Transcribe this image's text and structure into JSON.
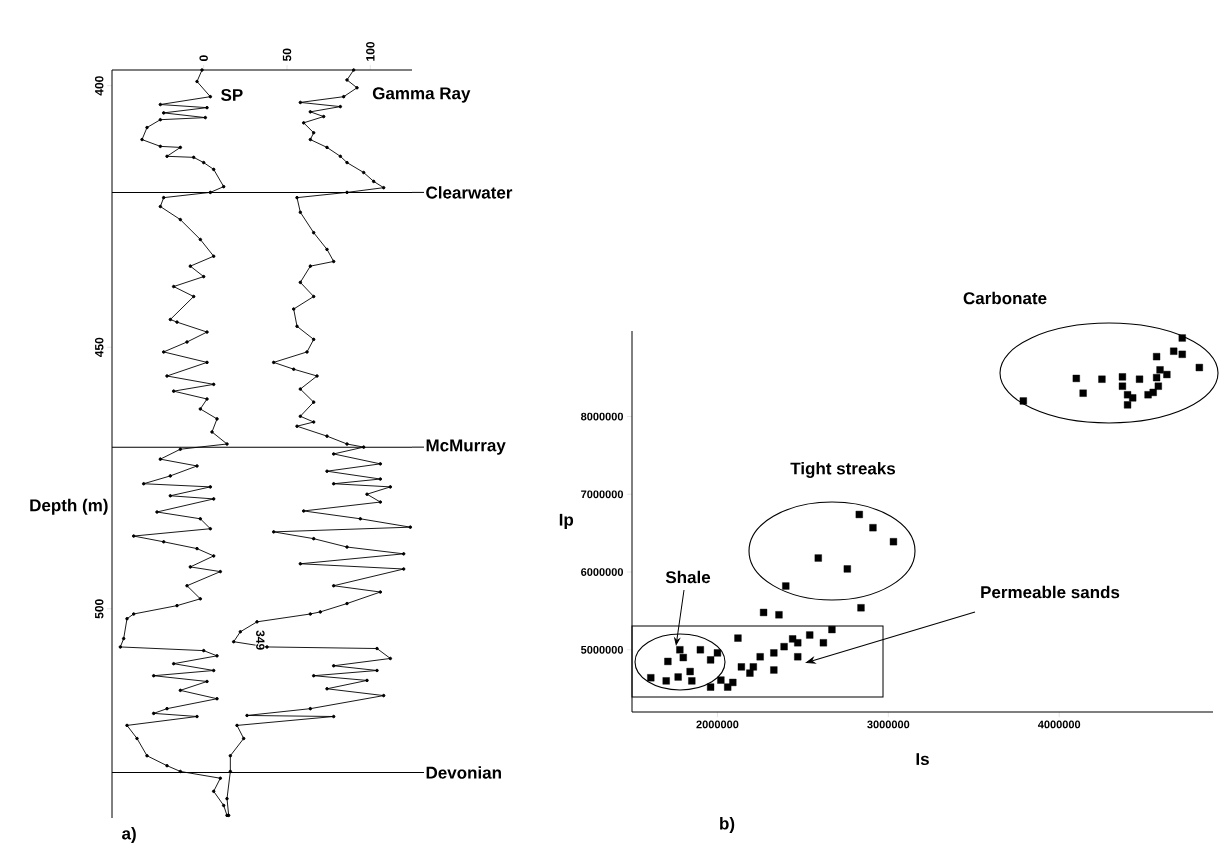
{
  "chart_data": [
    {
      "type": "line",
      "ylabel": "Depth (m)",
      "xlim": [
        -55,
        125
      ],
      "xticks": [
        0,
        50,
        100
      ],
      "ylim": [
        540,
        397
      ],
      "yticks": [
        400,
        450,
        500
      ],
      "marker": "circle",
      "line_style": "solid",
      "ref_lines": [
        {
          "axis": "y",
          "value": 420.4,
          "label": "Clearwater"
        },
        {
          "axis": "y",
          "value": 469.1,
          "label": "McMurray"
        },
        {
          "axis": "y",
          "value": 531.3,
          "label": "Devonian"
        }
      ],
      "annotations": [
        "a)",
        {
          "text": "349",
          "x": 34,
          "y": 506
        }
      ],
      "series": [
        {
          "name": "SP",
          "color": "#000000",
          "x": [
            -1,
            -4,
            4,
            -26,
            2,
            -24,
            1,
            -26,
            -34,
            -37,
            -26,
            -14,
            -22,
            -6,
            0,
            6,
            12,
            4,
            -24,
            -26,
            -14,
            -2,
            6,
            -8,
            0,
            -18,
            -6,
            -20,
            -16,
            2,
            -10,
            -24,
            2,
            -22,
            6,
            -18,
            2,
            -2,
            8,
            5,
            14,
            -14,
            -26,
            -4,
            -20,
            -36,
            4,
            -20,
            6,
            -28,
            -2,
            4,
            -42,
            -24,
            -4,
            6,
            -8,
            10,
            -10,
            -2,
            -16,
            -42,
            -46,
            -48,
            -50,
            0,
            8,
            -18,
            6,
            -30,
            2,
            -14,
            8,
            -22,
            -30,
            -4,
            -46,
            -40,
            -34,
            -22,
            -14,
            10,
            6,
            12,
            14
          ],
          "values": [
            397,
            399.2,
            402.1,
            403.6,
            404.2,
            405.2,
            406.1,
            406.5,
            408,
            410.3,
            411.6,
            411.8,
            413.5,
            413.7,
            414.7,
            416,
            419.3,
            420.4,
            421.4,
            423.1,
            425.6,
            429.4,
            432.6,
            434.5,
            436.5,
            438.4,
            440.3,
            444.7,
            445.2,
            447.1,
            449,
            450.9,
            452.9,
            455.5,
            457.1,
            458.4,
            459.9,
            461.8,
            463.7,
            466.2,
            468.5,
            469.5,
            471.4,
            472.7,
            474.6,
            476.1,
            476.7,
            478.4,
            479,
            481.5,
            482.8,
            484.7,
            486.1,
            487.2,
            488.5,
            489.9,
            492,
            492.9,
            495.6,
            498.1,
            499.4,
            501,
            501.9,
            505.7,
            507.3,
            508,
            509,
            510.5,
            511.8,
            512.8,
            513.9,
            515.6,
            517.2,
            519.1,
            520,
            520.6,
            522.3,
            524.8,
            528.1,
            530,
            531.1,
            532.4,
            534.9,
            537.6,
            539.5
          ]
        },
        {
          "name": "Gamma Ray",
          "color": "#000000",
          "x": [
            90,
            86,
            92,
            84,
            58,
            82,
            64,
            72,
            60,
            66,
            64,
            74,
            82,
            86,
            96,
            102,
            108,
            86,
            56,
            58,
            66,
            74,
            78,
            64,
            58,
            66,
            54,
            56,
            66,
            62,
            42,
            54,
            68,
            58,
            66,
            58,
            66,
            56,
            74,
            86,
            96,
            78,
            106,
            74,
            106,
            78,
            112,
            98,
            106,
            60,
            94,
            124,
            42,
            66,
            86,
            120,
            58,
            120,
            78,
            106,
            86,
            70,
            64,
            32,
            22,
            18,
            38,
            104,
            112,
            78,
            104,
            66,
            98,
            74,
            108,
            64,
            26,
            78,
            20,
            24,
            16,
            16,
            14,
            15
          ],
          "values": [
            397,
            398.9,
            400.4,
            402.1,
            403.2,
            404,
            405,
            405.9,
            407.1,
            409,
            410.3,
            411.8,
            413.5,
            414.7,
            416.6,
            418.3,
            419.5,
            420.4,
            421.4,
            424.2,
            428.1,
            431.3,
            433.6,
            434.5,
            437.6,
            440.3,
            442.7,
            446,
            448.5,
            450.9,
            452.9,
            454.2,
            455.5,
            458,
            460.5,
            463.2,
            464.3,
            465.1,
            467,
            468.5,
            469.1,
            470.4,
            472.3,
            473.7,
            475.2,
            476.1,
            476.7,
            478.1,
            479.6,
            481.3,
            482.8,
            484.4,
            485.3,
            486.6,
            488.2,
            489.5,
            491.4,
            492.4,
            495.6,
            496.8,
            499,
            500.6,
            501,
            502.5,
            504.4,
            506.3,
            507.3,
            507.6,
            509.5,
            510.9,
            511.8,
            512.8,
            513.7,
            515.3,
            516.6,
            519.1,
            520.4,
            520.6,
            522.3,
            524.8,
            528.1,
            531.1,
            536.3,
            539.5
          ]
        }
      ]
    },
    {
      "type": "scatter",
      "xlabel": "Is",
      "ylabel": "Ip",
      "xlim": [
        1500000,
        4900000
      ],
      "xticks": [
        2000000,
        3000000,
        4000000
      ],
      "ylim": [
        4200000,
        9100000
      ],
      "yticks": [
        5000000,
        6000000,
        7000000,
        8000000
      ],
      "marker": "square",
      "color": "#000000",
      "annotations": [
        "Carbonate",
        "Tight streaks",
        "Shale",
        "Permeable sands",
        "b)"
      ],
      "x": [
        4720000,
        4670000,
        4720000,
        4570000,
        4820000,
        4590000,
        4630000,
        4570000,
        4470000,
        4370000,
        4100000,
        4250000,
        4140000,
        4370000,
        4400000,
        4430000,
        4520000,
        4550000,
        4580000,
        4400000,
        3790000,
        2830000,
        2910000,
        3030000,
        2590000,
        2760000,
        2400000,
        2840000,
        2270000,
        2360000,
        2120000,
        2540000,
        2670000,
        2620000,
        2440000,
        1610000,
        1710000,
        1770000,
        1840000,
        1900000,
        1780000,
        1960000,
        2020000,
        2060000,
        2140000,
        2190000,
        2250000,
        2330000,
        2390000,
        2470000,
        2470000,
        2330000,
        2210000,
        2000000,
        2090000,
        1960000,
        1800000,
        1850000,
        1700000
      ],
      "values": [
        9010000,
        8840000,
        8800000,
        8770000,
        8630000,
        8600000,
        8540000,
        8500000,
        8480000,
        8510000,
        8490000,
        8480000,
        8300000,
        8390000,
        8280000,
        8240000,
        8280000,
        8310000,
        8390000,
        8150000,
        8200000,
        6740000,
        6570000,
        6390000,
        6180000,
        6040000,
        5820000,
        5540000,
        5480000,
        5450000,
        5150000,
        5190000,
        5260000,
        5090000,
        5140000,
        4640000,
        4850000,
        4650000,
        4720000,
        5000000,
        5000000,
        4870000,
        4610000,
        4520000,
        4780000,
        4700000,
        4910000,
        4960000,
        5040000,
        5090000,
        4910000,
        4740000,
        4780000,
        4960000,
        4580000,
        4520000,
        4900000,
        4600000,
        4600000
      ]
    }
  ]
}
